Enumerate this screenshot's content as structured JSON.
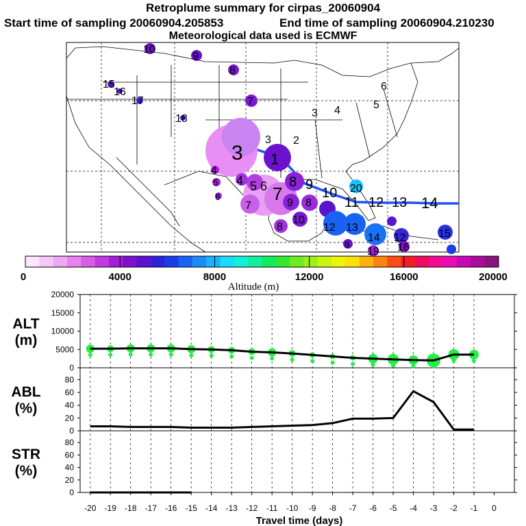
{
  "header": {
    "title": "Retroplume summary for cirpas_20060904",
    "start_label": "Start time of sampling 20060904.205853",
    "end_label": "End time of sampling 20060904.210230",
    "met_label": "Meteorological data used is ECMWF"
  },
  "colors": {
    "plume_track": "#1f4fff",
    "alt_green": "#22ee44",
    "line": "#000000"
  },
  "colorbar": {
    "label": "Altitude (m)",
    "min": 0,
    "max": 20000,
    "tick_values": [
      0,
      4000,
      8000,
      12000,
      16000,
      20000
    ],
    "tick_labels": [
      "0",
      "4000",
      "8000",
      "12000",
      "16000",
      "20000"
    ],
    "swatches": [
      "#fce6fc",
      "#f6c8f8",
      "#f0a8f4",
      "#e882f0",
      "#d85ce8",
      "#c23ae0",
      "#a21ed8",
      "#8010d0",
      "#5a12cc",
      "#2e22d8",
      "#1a3ce8",
      "#1a62f4",
      "#1a8cf8",
      "#18b4fc",
      "#18dcfc",
      "#14f0d8",
      "#10f0a0",
      "#14ec60",
      "#34e830",
      "#6cec20",
      "#9cf018",
      "#c8f410",
      "#ecf40c",
      "#fce00c",
      "#fcb40c",
      "#fc8410",
      "#fc4c18",
      "#f01c28",
      "#f00c5c",
      "#f00c94",
      "#e80cb4",
      "#c808b4",
      "#a80c98",
      "#881480"
    ]
  },
  "map_labels": {
    "track_days": [
      "1",
      "2",
      "3",
      "4",
      "5",
      "6",
      "7",
      "8",
      "9",
      "10",
      "11",
      "12",
      "13",
      "14"
    ],
    "scatter": [
      "1",
      "2",
      "3",
      "4",
      "5",
      "6",
      "7",
      "8",
      "9",
      "10",
      "11",
      "12",
      "13",
      "14",
      "15",
      "16",
      "17",
      "18",
      "19",
      "20"
    ]
  },
  "chart_data": [
    {
      "type": "line",
      "name": "ALT",
      "ylabel": "ALT\n(m)",
      "ylabel_lines": [
        "ALT",
        "(m)"
      ],
      "ylim": [
        0,
        20000
      ],
      "yticks": [
        0,
        5000,
        10000,
        15000,
        20000
      ],
      "ytick_labels": [
        "0",
        "5000",
        "10000",
        "15000",
        "20000"
      ],
      "x": [
        -20,
        -19,
        -18,
        -17,
        -16,
        -15,
        -14,
        -13,
        -12,
        -11,
        -10,
        -9,
        -8,
        -7,
        -6,
        -5,
        -4,
        -3,
        -2,
        -1
      ],
      "values": [
        5200,
        5200,
        5300,
        5300,
        5300,
        5100,
        5000,
        4800,
        4400,
        4200,
        3900,
        3500,
        3100,
        2700,
        2500,
        2300,
        2100,
        2000,
        3600,
        3600
      ]
    },
    {
      "type": "line",
      "name": "ABL",
      "ylabel_lines": [
        "ABL",
        "(%)"
      ],
      "ylim": [
        0,
        90
      ],
      "yticks": [
        0,
        20,
        40,
        60,
        80
      ],
      "ytick_labels": [
        "0",
        "20",
        "40",
        "60",
        "80"
      ],
      "x": [
        -20,
        -19,
        -18,
        -17,
        -16,
        -15,
        -14,
        -13,
        -12,
        -11,
        -10,
        -9,
        -8,
        -7,
        -6,
        -5,
        -4,
        -3,
        -2,
        -1
      ],
      "values": [
        7,
        7,
        6,
        6,
        6,
        5,
        5,
        5,
        6,
        7,
        8,
        9,
        12,
        19,
        19,
        20,
        62,
        45,
        2,
        2
      ]
    },
    {
      "type": "line",
      "name": "STR",
      "ylabel_lines": [
        "STR",
        "(%)"
      ],
      "ylim": [
        0,
        90
      ],
      "yticks": [
        0,
        20,
        40,
        60,
        80
      ],
      "ytick_labels": [
        "0",
        "20",
        "40",
        "60",
        "80"
      ],
      "x": [
        -20,
        -19,
        -18,
        -17,
        -16,
        -15
      ],
      "values": [
        0,
        0,
        0,
        0,
        0,
        0
      ]
    }
  ],
  "xaxis": {
    "label": "Travel time (days)",
    "ticks": [
      -20,
      -19,
      -18,
      -17,
      -16,
      -15,
      -14,
      -13,
      -12,
      -11,
      -10,
      -9,
      -8,
      -7,
      -6,
      -5,
      -4,
      -3,
      -2,
      -1,
      0
    ],
    "tick_labels": [
      "-20",
      "-19",
      "-18",
      "-17",
      "-16",
      "-15",
      "-14",
      "-13",
      "-12",
      "-11",
      "-10",
      "-9",
      "-8",
      "-7",
      "-6",
      "-5",
      "-4",
      "-3",
      "-2",
      "-1",
      "0"
    ]
  }
}
